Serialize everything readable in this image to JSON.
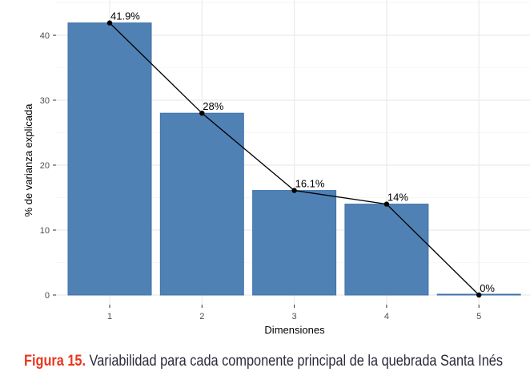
{
  "chart_data": {
    "type": "bar",
    "categories": [
      "1",
      "2",
      "3",
      "4",
      "5"
    ],
    "values": [
      41.9,
      28,
      16.1,
      14,
      0
    ],
    "data_labels": [
      "41.9%",
      "28%",
      "16.1%",
      "14%",
      "0%"
    ],
    "overlay": "line with points through bar tops",
    "xlabel": "Dimensiones",
    "ylabel": "% de varianza explicada",
    "yticks": [
      "0",
      "10",
      "20",
      "30",
      "40"
    ],
    "ylim": [
      0,
      45
    ],
    "grid": true,
    "colors": {
      "bar": "#4f81b5",
      "line": "#000000"
    }
  },
  "caption": {
    "label": "Figura 15.",
    "text": " Variabilidad para cada componente principal de la quebrada Santa Inés"
  }
}
